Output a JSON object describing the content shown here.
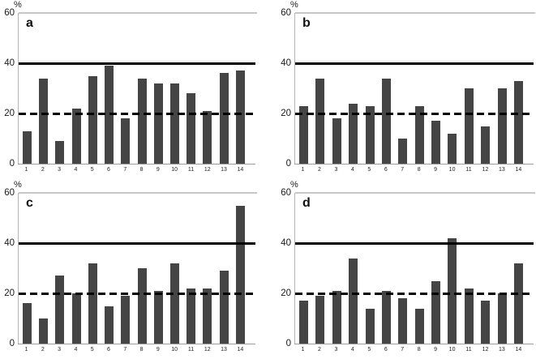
{
  "figure": {
    "unit_label": "%",
    "layout": "2x2 grid of bar chart panels",
    "y_ticks": [
      0,
      20,
      40,
      60
    ],
    "ylim": [
      0,
      60
    ],
    "reference_lines": {
      "solid_y": 40,
      "dashed_y": 20,
      "top_gridline_y": 60
    },
    "colors": {
      "bar": "#454545",
      "solid_line": "#000000",
      "dashed_line": "#000000",
      "top_gridline": "#c7c7c7",
      "axis": "#9c9c9c",
      "background": "#ffffff",
      "text": "#1a1a1a"
    }
  },
  "chart_data": [
    {
      "type": "bar",
      "panel_label": "a",
      "categories": [
        "1",
        "2",
        "3",
        "4",
        "5",
        "6",
        "7",
        "8",
        "9",
        "10",
        "11",
        "12",
        "13",
        "14"
      ],
      "values": [
        13,
        34,
        9,
        22,
        35,
        39,
        18,
        34,
        32,
        32,
        28,
        21,
        36,
        37
      ],
      "ylabel": "%",
      "ylim": [
        0,
        60
      ],
      "ref_solid": 40,
      "ref_dashed": 20,
      "legend_position": "none",
      "grid": "top gridline at 60 only"
    },
    {
      "type": "bar",
      "panel_label": "b",
      "categories": [
        "1",
        "2",
        "3",
        "4",
        "5",
        "6",
        "7",
        "8",
        "9",
        "10",
        "11",
        "12",
        "13",
        "14"
      ],
      "values": [
        23,
        34,
        18,
        24,
        23,
        34,
        10,
        23,
        17,
        12,
        30,
        15,
        30,
        33
      ],
      "ylabel": "%",
      "ylim": [
        0,
        60
      ],
      "ref_solid": 40,
      "ref_dashed": 20,
      "legend_position": "none",
      "grid": "top gridline at 60 only"
    },
    {
      "type": "bar",
      "panel_label": "c",
      "categories": [
        "1",
        "2",
        "3",
        "4",
        "5",
        "6",
        "7",
        "8",
        "9",
        "10",
        "11",
        "12",
        "13",
        "14"
      ],
      "values": [
        16,
        10,
        27,
        20,
        32,
        15,
        19,
        30,
        21,
        32,
        22,
        22,
        29,
        55
      ],
      "ylabel": "%",
      "ylim": [
        0,
        60
      ],
      "ref_solid": 40,
      "ref_dashed": 20,
      "legend_position": "none",
      "grid": "top gridline at 60 only"
    },
    {
      "type": "bar",
      "panel_label": "d",
      "categories": [
        "1",
        "2",
        "3",
        "4",
        "5",
        "6",
        "7",
        "8",
        "9",
        "10",
        "11",
        "12",
        "13",
        "14"
      ],
      "values": [
        17,
        19,
        21,
        34,
        14,
        21,
        18,
        14,
        25,
        42,
        22,
        17,
        20,
        32
      ],
      "ylabel": "%",
      "ylim": [
        0,
        60
      ],
      "ref_solid": 40,
      "ref_dashed": 20,
      "legend_position": "none",
      "grid": "top gridline at 60 only"
    }
  ]
}
